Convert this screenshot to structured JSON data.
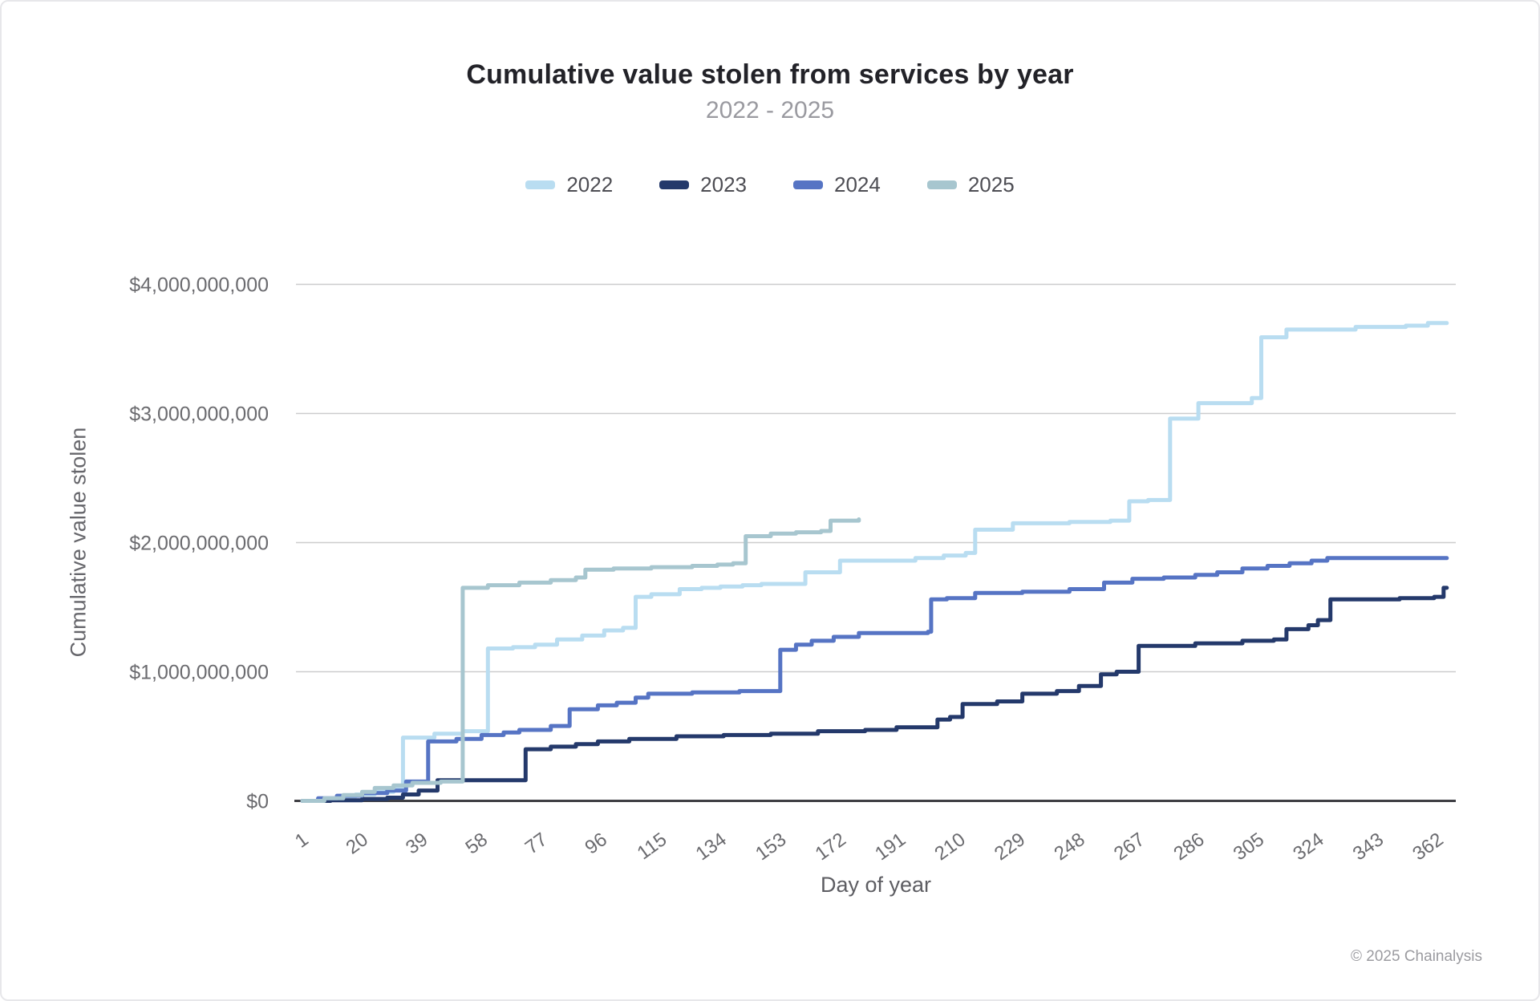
{
  "header": {
    "title": "Cumulative value stolen from services by year",
    "subtitle": "2022 - 2025"
  },
  "axes": {
    "y_title": "Cumulative value stolen",
    "x_title": "Day of year",
    "y_tick_labels": [
      "$0",
      "$1,000,000,000",
      "$2,000,000,000",
      "$3,000,000,000",
      "$4,000,000,000"
    ]
  },
  "footer": {
    "copyright": "© 2025 Chainalysis"
  },
  "colors": {
    "s2022": "#B9DDF1",
    "s2023": "#24396B",
    "s2024": "#5674C4",
    "s2025": "#A7C6CF",
    "gridline": "#cccccd",
    "zero_axis": "#3f3f44",
    "tick_text": "#6b6b6f"
  },
  "chart_data": {
    "type": "line",
    "title": "Cumulative value stolen from services by year",
    "subtitle": "2022 - 2025",
    "xlabel": "Day of year",
    "ylabel": "Cumulative value stolen",
    "line_style": "step-after",
    "grid": "horizontal-only",
    "legend_position": "top-center",
    "x_range_days": [
      1,
      365
    ],
    "y_range_usd": [
      0,
      4000000000
    ],
    "x_tick_days": [
      1,
      20,
      39,
      58,
      77,
      96,
      115,
      134,
      153,
      172,
      191,
      210,
      229,
      248,
      267,
      286,
      305,
      324,
      343,
      362
    ],
    "y_tick_values_usd": [
      0,
      1000000000,
      2000000000,
      3000000000,
      4000000000
    ],
    "unit": "USD billions",
    "series": [
      {
        "name": "2022",
        "color": "#B9DDF1",
        "final_value_billions": 3.7,
        "points_day_value": [
          [
            1,
            0
          ],
          [
            6,
            0.015
          ],
          [
            12,
            0.035
          ],
          [
            18,
            0.05
          ],
          [
            24,
            0.07
          ],
          [
            30,
            0.09
          ],
          [
            33,
            0.49
          ],
          [
            43,
            0.52
          ],
          [
            52,
            0.54
          ],
          [
            60,
            1.18
          ],
          [
            68,
            1.19
          ],
          [
            75,
            1.21
          ],
          [
            82,
            1.25
          ],
          [
            90,
            1.28
          ],
          [
            97,
            1.32
          ],
          [
            103,
            1.34
          ],
          [
            107,
            1.58
          ],
          [
            112,
            1.6
          ],
          [
            121,
            1.64
          ],
          [
            128,
            1.65
          ],
          [
            134,
            1.66
          ],
          [
            141,
            1.67
          ],
          [
            147,
            1.68
          ],
          [
            161,
            1.77
          ],
          [
            172,
            1.86
          ],
          [
            196,
            1.88
          ],
          [
            205,
            1.9
          ],
          [
            212,
            1.92
          ],
          [
            215,
            2.1
          ],
          [
            227,
            2.15
          ],
          [
            245,
            2.16
          ],
          [
            258,
            2.17
          ],
          [
            264,
            2.32
          ],
          [
            270,
            2.33
          ],
          [
            277,
            2.96
          ],
          [
            286,
            3.08
          ],
          [
            303,
            3.12
          ],
          [
            306,
            3.59
          ],
          [
            314,
            3.65
          ],
          [
            336,
            3.67
          ],
          [
            352,
            3.68
          ],
          [
            359,
            3.7
          ],
          [
            365,
            3.7
          ]
        ]
      },
      {
        "name": "2023",
        "color": "#24396B",
        "final_value_billions": 1.65,
        "points_day_value": [
          [
            1,
            0
          ],
          [
            10,
            0.005
          ],
          [
            20,
            0.015
          ],
          [
            28,
            0.025
          ],
          [
            33,
            0.05
          ],
          [
            38,
            0.08
          ],
          [
            44,
            0.16
          ],
          [
            60,
            0.16
          ],
          [
            72,
            0.4
          ],
          [
            80,
            0.42
          ],
          [
            88,
            0.44
          ],
          [
            95,
            0.46
          ],
          [
            105,
            0.48
          ],
          [
            120,
            0.5
          ],
          [
            135,
            0.51
          ],
          [
            150,
            0.52
          ],
          [
            165,
            0.54
          ],
          [
            180,
            0.55
          ],
          [
            190,
            0.57
          ],
          [
            203,
            0.63
          ],
          [
            207,
            0.65
          ],
          [
            211,
            0.75
          ],
          [
            222,
            0.77
          ],
          [
            230,
            0.83
          ],
          [
            241,
            0.85
          ],
          [
            248,
            0.89
          ],
          [
            255,
            0.98
          ],
          [
            260,
            1.0
          ],
          [
            267,
            1.2
          ],
          [
            285,
            1.22
          ],
          [
            300,
            1.24
          ],
          [
            310,
            1.25
          ],
          [
            314,
            1.33
          ],
          [
            321,
            1.36
          ],
          [
            324,
            1.4
          ],
          [
            328,
            1.56
          ],
          [
            350,
            1.57
          ],
          [
            361,
            1.58
          ],
          [
            364,
            1.65
          ],
          [
            365,
            1.65
          ]
        ]
      },
      {
        "name": "2024",
        "color": "#5674C4",
        "final_value_billions": 1.88,
        "points_day_value": [
          [
            1,
            0
          ],
          [
            6,
            0.02
          ],
          [
            12,
            0.04
          ],
          [
            20,
            0.06
          ],
          [
            28,
            0.08
          ],
          [
            34,
            0.15
          ],
          [
            41,
            0.46
          ],
          [
            50,
            0.48
          ],
          [
            58,
            0.51
          ],
          [
            65,
            0.53
          ],
          [
            70,
            0.55
          ],
          [
            80,
            0.58
          ],
          [
            86,
            0.71
          ],
          [
            95,
            0.74
          ],
          [
            101,
            0.76
          ],
          [
            107,
            0.8
          ],
          [
            111,
            0.83
          ],
          [
            125,
            0.84
          ],
          [
            140,
            0.85
          ],
          [
            153,
            1.17
          ],
          [
            158,
            1.21
          ],
          [
            163,
            1.24
          ],
          [
            170,
            1.27
          ],
          [
            178,
            1.3
          ],
          [
            200,
            1.31
          ],
          [
            201,
            1.56
          ],
          [
            206,
            1.57
          ],
          [
            215,
            1.61
          ],
          [
            230,
            1.62
          ],
          [
            245,
            1.64
          ],
          [
            256,
            1.69
          ],
          [
            265,
            1.72
          ],
          [
            275,
            1.73
          ],
          [
            285,
            1.75
          ],
          [
            292,
            1.77
          ],
          [
            300,
            1.8
          ],
          [
            308,
            1.82
          ],
          [
            315,
            1.84
          ],
          [
            322,
            1.86
          ],
          [
            327,
            1.88
          ],
          [
            365,
            1.88
          ]
        ]
      },
      {
        "name": "2025",
        "color": "#A7C6CF",
        "final_value_billions": 2.18,
        "points_day_value": [
          [
            1,
            0
          ],
          [
            8,
            0.02
          ],
          [
            14,
            0.045
          ],
          [
            20,
            0.07
          ],
          [
            24,
            0.1
          ],
          [
            30,
            0.12
          ],
          [
            36,
            0.14
          ],
          [
            45,
            0.15
          ],
          [
            52,
            1.65
          ],
          [
            60,
            1.67
          ],
          [
            70,
            1.69
          ],
          [
            80,
            1.71
          ],
          [
            88,
            1.73
          ],
          [
            91,
            1.79
          ],
          [
            100,
            1.8
          ],
          [
            112,
            1.81
          ],
          [
            125,
            1.82
          ],
          [
            133,
            1.83
          ],
          [
            138,
            1.84
          ],
          [
            142,
            2.05
          ],
          [
            150,
            2.07
          ],
          [
            158,
            2.08
          ],
          [
            166,
            2.09
          ],
          [
            169,
            2.17
          ],
          [
            178,
            2.18
          ]
        ]
      }
    ]
  }
}
